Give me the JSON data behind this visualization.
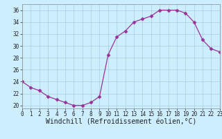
{
  "x": [
    0,
    1,
    2,
    3,
    4,
    5,
    6,
    7,
    8,
    9,
    10,
    11,
    12,
    13,
    14,
    15,
    16,
    17,
    18,
    19,
    20,
    21,
    22,
    23
  ],
  "y": [
    24.0,
    23.0,
    22.5,
    21.5,
    21.0,
    20.5,
    20.0,
    20.0,
    20.5,
    21.5,
    28.5,
    31.5,
    32.5,
    34.0,
    34.5,
    35.0,
    36.0,
    36.0,
    36.0,
    35.5,
    34.0,
    31.0,
    29.5,
    29.0
  ],
  "xlim": [
    0,
    23
  ],
  "ylim": [
    19.5,
    37
  ],
  "yticks": [
    20,
    22,
    24,
    26,
    28,
    30,
    32,
    34,
    36
  ],
  "xticks": [
    0,
    1,
    2,
    3,
    4,
    5,
    6,
    7,
    8,
    9,
    10,
    11,
    12,
    13,
    14,
    15,
    16,
    17,
    18,
    19,
    20,
    21,
    22,
    23
  ],
  "xlabel": "Windchill (Refroidissement éolien,°C)",
  "line_color": "#993399",
  "marker": "D",
  "marker_size": 2.5,
  "bg_color": "#cceeff",
  "grid_color": "#aaccdd",
  "label_fontsize": 7,
  "tick_fontsize": 5.5
}
